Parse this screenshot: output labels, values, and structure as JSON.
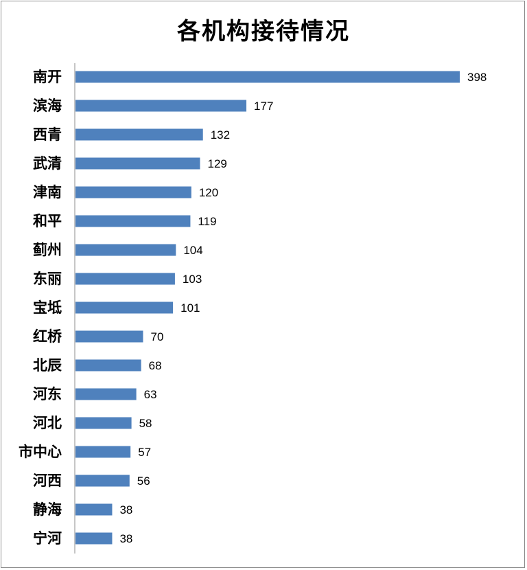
{
  "chart_data": {
    "type": "bar",
    "orientation": "horizontal",
    "title": "各机构接待情况",
    "xlabel": "",
    "ylabel": "",
    "categories": [
      "南开",
      "滨海",
      "西青",
      "武清",
      "津南",
      "和平",
      "蓟州",
      "东丽",
      "宝坻",
      "红桥",
      "北辰",
      "河东",
      "河北",
      "市中心",
      "河西",
      "静海",
      "宁河"
    ],
    "values": [
      398,
      177,
      132,
      129,
      120,
      119,
      104,
      103,
      101,
      70,
      68,
      63,
      58,
      57,
      56,
      38,
      38
    ],
    "xlim": [
      0,
      398
    ],
    "bar_color": "#4f81bd",
    "grid": false,
    "legend": "none",
    "data_labels": true
  }
}
